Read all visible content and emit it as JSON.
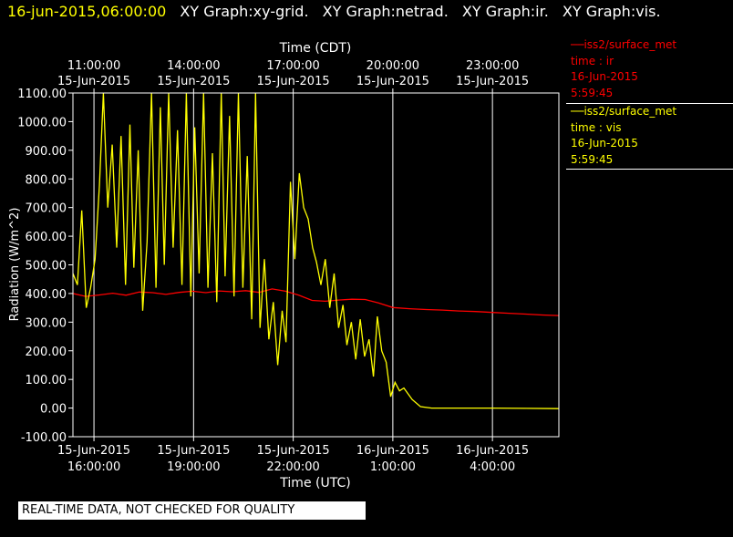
{
  "header": {
    "timestamp": "16-jun-2015,06:00:00",
    "graphs": [
      "XY Graph:xy-grid.",
      "XY Graph:netrad.",
      "XY Graph:ir.",
      "XY Graph:vis."
    ]
  },
  "legend": [
    {
      "series": "iss2/surface_met",
      "vars": "time : ir",
      "date": "16-Jun-2015",
      "time": "5:59:45",
      "color": "#ff0000"
    },
    {
      "series": "iss2/surface_met",
      "vars": "time : vis",
      "date": "16-Jun-2015",
      "time": "5:59:45",
      "color": "#ffff00"
    }
  ],
  "notice": "REAL-TIME DATA, NOT CHECKED FOR QUALITY",
  "colors": {
    "background": "#000000",
    "axes": "#ffffff",
    "ir": "#ff0000",
    "vis": "#ffff00"
  },
  "chart_data": {
    "type": "line",
    "ylabel": "Radiation (W/m^2)",
    "xlabel_bottom": "Time (UTC)",
    "xlabel_top": "Time (CDT)",
    "ylim": [
      -100,
      1100
    ],
    "xlim": [
      "2015-06-15T15:22",
      "2015-06-16T06:00"
    ],
    "grid": true,
    "yticks": [
      -100,
      0,
      100,
      200,
      300,
      400,
      500,
      600,
      700,
      800,
      900,
      1000,
      1100
    ],
    "ytick_labels": [
      "-100.00",
      "0.00",
      "100.00",
      "200.00",
      "300.00",
      "400.00",
      "500.00",
      "600.00",
      "700.00",
      "800.00",
      "900.00",
      "1000.00",
      "1100.00"
    ],
    "xticks_bottom": [
      {
        "t": "2015-06-15T16:00",
        "date": "15-Jun-2015",
        "time": "16:00:00"
      },
      {
        "t": "2015-06-15T19:00",
        "date": "15-Jun-2015",
        "time": "19:00:00"
      },
      {
        "t": "2015-06-15T22:00",
        "date": "15-Jun-2015",
        "time": "22:00:00"
      },
      {
        "t": "2015-06-16T01:00",
        "date": "16-Jun-2015",
        "time": "1:00:00"
      },
      {
        "t": "2015-06-16T04:00",
        "date": "16-Jun-2015",
        "time": "4:00:00"
      }
    ],
    "xticks_top": [
      {
        "t": "2015-06-15T16:00",
        "date": "15-Jun-2015",
        "time": "11:00:00"
      },
      {
        "t": "2015-06-15T19:00",
        "date": "15-Jun-2015",
        "time": "14:00:00"
      },
      {
        "t": "2015-06-15T22:00",
        "date": "15-Jun-2015",
        "time": "17:00:00"
      },
      {
        "t": "2015-06-16T01:00",
        "date": "15-Jun-2015",
        "time": "20:00:00"
      },
      {
        "t": "2015-06-16T04:00",
        "date": "15-Jun-2015",
        "time": "23:00:00"
      }
    ],
    "series": [
      {
        "name": "time : ir",
        "color": "#ff0000",
        "points": [
          [
            "2015-06-15T15:22",
            400
          ],
          [
            "2015-06-15T15:45",
            390
          ],
          [
            "2015-06-15T16:10",
            395
          ],
          [
            "2015-06-15T16:34",
            401
          ],
          [
            "2015-06-15T16:58",
            394
          ],
          [
            "2015-06-15T17:22",
            405
          ],
          [
            "2015-06-15T17:46",
            403
          ],
          [
            "2015-06-15T18:10",
            397
          ],
          [
            "2015-06-15T18:34",
            404
          ],
          [
            "2015-06-15T18:58",
            408
          ],
          [
            "2015-06-15T19:22",
            403
          ],
          [
            "2015-06-15T19:46",
            409
          ],
          [
            "2015-06-15T20:10",
            406
          ],
          [
            "2015-06-15T20:34",
            410
          ],
          [
            "2015-06-15T20:58",
            404
          ],
          [
            "2015-06-15T21:22",
            416
          ],
          [
            "2015-06-15T21:46",
            408
          ],
          [
            "2015-06-15T22:10",
            394
          ],
          [
            "2015-06-15T22:34",
            376
          ],
          [
            "2015-06-15T22:58",
            373
          ],
          [
            "2015-06-15T23:22",
            377
          ],
          [
            "2015-06-15T23:46",
            380
          ],
          [
            "2015-06-16T00:10",
            379
          ],
          [
            "2015-06-16T00:34",
            367
          ],
          [
            "2015-06-16T01:00",
            351
          ],
          [
            "2015-06-16T01:30",
            347
          ],
          [
            "2015-06-16T02:00",
            344
          ],
          [
            "2015-06-16T02:30",
            342
          ],
          [
            "2015-06-16T03:00",
            339
          ],
          [
            "2015-06-16T03:30",
            337
          ],
          [
            "2015-06-16T04:00",
            334
          ],
          [
            "2015-06-16T04:30",
            331
          ],
          [
            "2015-06-16T05:00",
            328
          ],
          [
            "2015-06-16T05:30",
            325
          ],
          [
            "2015-06-16T06:00",
            323
          ]
        ]
      },
      {
        "name": "time : vis",
        "color": "#ffff00",
        "points": [
          [
            "2015-06-15T15:22",
            470
          ],
          [
            "2015-06-15T15:30",
            430
          ],
          [
            "2015-06-15T15:38",
            690
          ],
          [
            "2015-06-15T15:46",
            350
          ],
          [
            "2015-06-15T15:54",
            420
          ],
          [
            "2015-06-15T16:02",
            520
          ],
          [
            "2015-06-15T16:10",
            780
          ],
          [
            "2015-06-15T16:17",
            1100
          ],
          [
            "2015-06-15T16:25",
            700
          ],
          [
            "2015-06-15T16:33",
            920
          ],
          [
            "2015-06-15T16:41",
            560
          ],
          [
            "2015-06-15T16:49",
            950
          ],
          [
            "2015-06-15T16:57",
            430
          ],
          [
            "2015-06-15T17:05",
            990
          ],
          [
            "2015-06-15T17:12",
            490
          ],
          [
            "2015-06-15T17:20",
            900
          ],
          [
            "2015-06-15T17:28",
            340
          ],
          [
            "2015-06-15T17:36",
            580
          ],
          [
            "2015-06-15T17:44",
            1100
          ],
          [
            "2015-06-15T17:52",
            420
          ],
          [
            "2015-06-15T18:00",
            1050
          ],
          [
            "2015-06-15T18:07",
            500
          ],
          [
            "2015-06-15T18:15",
            1100
          ],
          [
            "2015-06-15T18:23",
            560
          ],
          [
            "2015-06-15T18:31",
            970
          ],
          [
            "2015-06-15T18:39",
            430
          ],
          [
            "2015-06-15T18:47",
            1100
          ],
          [
            "2015-06-15T18:55",
            390
          ],
          [
            "2015-06-15T19:02",
            980
          ],
          [
            "2015-06-15T19:10",
            470
          ],
          [
            "2015-06-15T19:18",
            1100
          ],
          [
            "2015-06-15T19:26",
            420
          ],
          [
            "2015-06-15T19:34",
            890
          ],
          [
            "2015-06-15T19:42",
            370
          ],
          [
            "2015-06-15T19:50",
            1100
          ],
          [
            "2015-06-15T19:57",
            460
          ],
          [
            "2015-06-15T20:05",
            1020
          ],
          [
            "2015-06-15T20:13",
            390
          ],
          [
            "2015-06-15T20:21",
            1100
          ],
          [
            "2015-06-15T20:29",
            420
          ],
          [
            "2015-06-15T20:37",
            880
          ],
          [
            "2015-06-15T20:45",
            310
          ],
          [
            "2015-06-15T20:52",
            1100
          ],
          [
            "2015-06-15T21:00",
            280
          ],
          [
            "2015-06-15T21:08",
            520
          ],
          [
            "2015-06-15T21:16",
            240
          ],
          [
            "2015-06-15T21:24",
            370
          ],
          [
            "2015-06-15T21:32",
            150
          ],
          [
            "2015-06-15T21:40",
            340
          ],
          [
            "2015-06-15T21:47",
            230
          ],
          [
            "2015-06-15T21:55",
            790
          ],
          [
            "2015-06-15T22:03",
            520
          ],
          [
            "2015-06-15T22:11",
            820
          ],
          [
            "2015-06-15T22:19",
            700
          ],
          [
            "2015-06-15T22:27",
            660
          ],
          [
            "2015-06-15T22:35",
            560
          ],
          [
            "2015-06-15T22:42",
            510
          ],
          [
            "2015-06-15T22:50",
            430
          ],
          [
            "2015-06-15T22:58",
            520
          ],
          [
            "2015-06-15T23:06",
            350
          ],
          [
            "2015-06-15T23:14",
            470
          ],
          [
            "2015-06-15T23:22",
            280
          ],
          [
            "2015-06-15T23:30",
            360
          ],
          [
            "2015-06-15T23:37",
            220
          ],
          [
            "2015-06-15T23:45",
            300
          ],
          [
            "2015-06-15T23:53",
            170
          ],
          [
            "2015-06-16T00:01",
            310
          ],
          [
            "2015-06-16T00:09",
            180
          ],
          [
            "2015-06-16T00:17",
            240
          ],
          [
            "2015-06-16T00:25",
            110
          ],
          [
            "2015-06-16T00:32",
            320
          ],
          [
            "2015-06-16T00:40",
            200
          ],
          [
            "2015-06-16T00:48",
            160
          ],
          [
            "2015-06-16T00:56",
            40
          ],
          [
            "2015-06-16T01:04",
            90
          ],
          [
            "2015-06-16T01:12",
            60
          ],
          [
            "2015-06-16T01:20",
            70
          ],
          [
            "2015-06-16T01:35",
            30
          ],
          [
            "2015-06-16T01:50",
            5
          ],
          [
            "2015-06-16T02:10",
            0
          ],
          [
            "2015-06-16T03:00",
            0
          ],
          [
            "2015-06-16T04:00",
            0
          ],
          [
            "2015-06-16T05:00",
            -1
          ],
          [
            "2015-06-16T06:00",
            -2
          ]
        ]
      }
    ]
  }
}
